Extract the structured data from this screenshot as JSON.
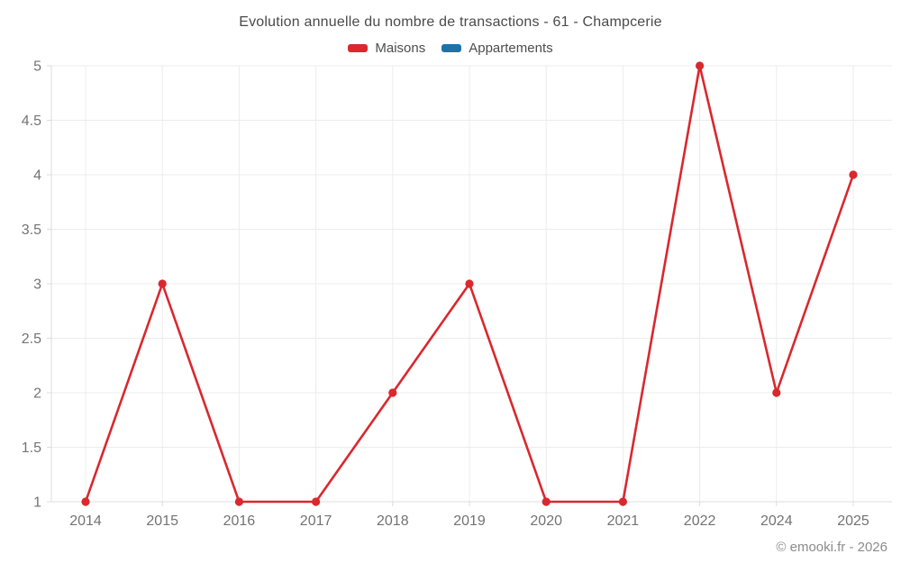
{
  "title": "Evolution annuelle du nombre de transactions - 61 - Champcerie",
  "legend": [
    {
      "label": "Maisons",
      "color": "#d9282e"
    },
    {
      "label": "Appartements",
      "color": "#1d72a8"
    }
  ],
  "watermark": "© emooki.fr - 2026",
  "colors": {
    "grid": "#ececec",
    "axis": "#dcdcdc",
    "tick_label": "#737373",
    "title": "#4a4a4a"
  },
  "chart_data": {
    "type": "line",
    "title": "Evolution annuelle du nombre de transactions - 61 - Champcerie",
    "categories": [
      "2014",
      "2015",
      "2016",
      "2017",
      "2018",
      "2019",
      "2020",
      "2021",
      "2022",
      "2024",
      "2025"
    ],
    "series": [
      {
        "name": "Maisons",
        "color": "#d9282e",
        "values": [
          1,
          3,
          1,
          1,
          2,
          3,
          1,
          1,
          5,
          2,
          4
        ]
      },
      {
        "name": "Appartements",
        "color": "#1d72a8",
        "values": []
      }
    ],
    "xlabel": "",
    "ylabel": "",
    "ylim": [
      1,
      5
    ],
    "yticks": [
      "1",
      "1.5",
      "2",
      "2.5",
      "3",
      "3.5",
      "4",
      "4.5",
      "5"
    ],
    "grid": true,
    "legend_position": "top",
    "marker": "circle"
  }
}
